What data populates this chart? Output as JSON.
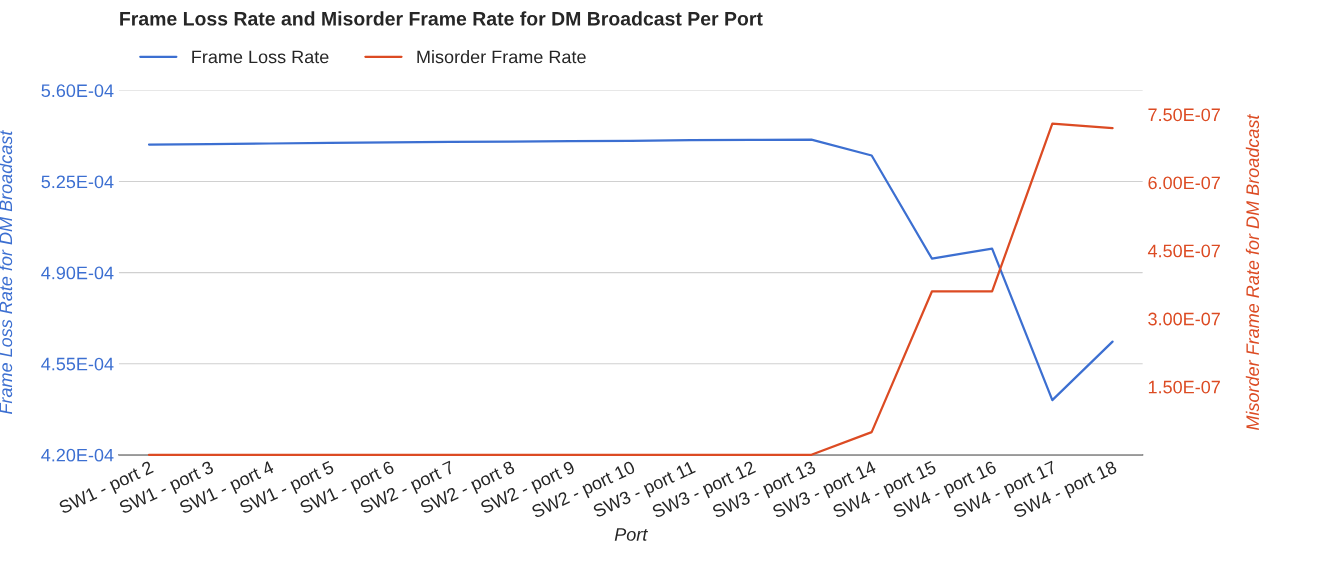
{
  "chart_data": {
    "type": "line",
    "title": "Frame Loss Rate and Misorder Frame Rate for DM Broadcast Per Port",
    "xlabel": "Port",
    "ylabel": "Frame Loss Rate for DM Broadcast",
    "y2label": "Misorder Frame Rate for DM Broadcast",
    "categories": [
      "SW1 - port 2",
      "SW1 - port 3",
      "SW1 - port 4",
      "SW1 - port 5",
      "SW1 - port 6",
      "SW2 - port 7",
      "SW2 - port 8",
      "SW2 - port 9",
      "SW2 - port 10",
      "SW3 - port 11",
      "SW3 - port 12",
      "SW3 - port 13",
      "SW3 - port 14",
      "SW4 - port 15",
      "SW4 - port 16",
      "SW4 - port 17",
      "SW4 - port 18"
    ],
    "series": [
      {
        "name": "Frame Loss Rate",
        "color": "#3c6fd1",
        "values": [
          0.0005392,
          0.0005394,
          0.0005396,
          0.0005398,
          0.00054,
          0.0005402,
          0.0005403,
          0.0005405,
          0.0005406,
          0.0005409,
          0.000541,
          0.0005411,
          0.000535,
          0.0004954,
          0.0004992,
          0.000441,
          0.0004635
        ]
      },
      {
        "name": "Misorder Frame Rate",
        "color": "#dc4b23",
        "axis": "y2",
        "values": [
          0,
          0,
          0,
          0,
          0,
          0,
          0,
          0,
          0,
          0,
          0,
          0,
          5e-08,
          3.6e-07,
          3.6e-07,
          7.3e-07,
          7.2e-07
        ]
      }
    ],
    "ylim": [
      0.00042,
      0.00056
    ],
    "yticks": [
      {
        "value": 0.00042,
        "label": "4.20E-04"
      },
      {
        "value": 0.000455,
        "label": "4.55E-04"
      },
      {
        "value": 0.00049,
        "label": "4.90E-04"
      },
      {
        "value": 0.000525,
        "label": "5.25E-04"
      },
      {
        "value": 0.00056,
        "label": "5.60E-04"
      }
    ],
    "y2lim": [
      0,
      8.03e-07
    ],
    "y2ticks": [
      {
        "value": 1.5e-07,
        "label": "1.50E-07"
      },
      {
        "value": 3e-07,
        "label": "3.00E-07"
      },
      {
        "value": 4.5e-07,
        "label": "4.50E-07"
      },
      {
        "value": 6e-07,
        "label": "6.00E-07"
      },
      {
        "value": 7.5e-07,
        "label": "7.50E-07"
      }
    ],
    "grid": "y",
    "legend": "top left",
    "marker": "none",
    "line_style": "solid"
  }
}
